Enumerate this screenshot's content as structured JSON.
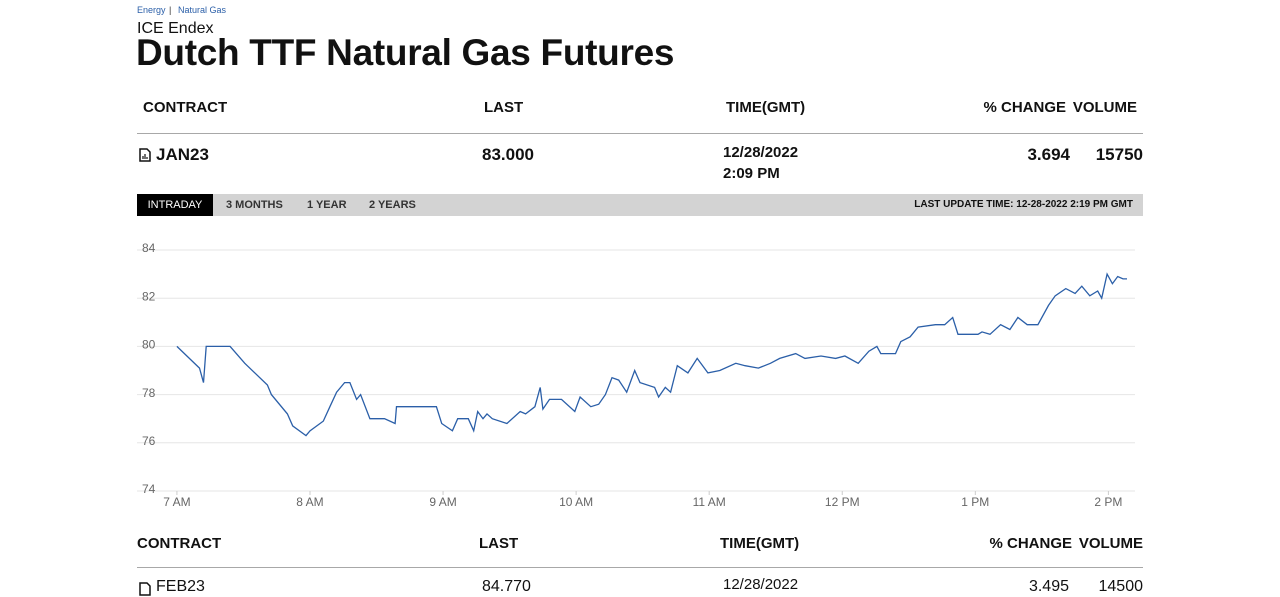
{
  "breadcrumb": {
    "items": [
      "Energy",
      "Natural Gas"
    ],
    "separator": "|"
  },
  "header": {
    "exchange": "ICE Endex",
    "title": "Dutch TTF Natural Gas Futures"
  },
  "table": {
    "columns": [
      "CONTRACT",
      "LAST",
      "TIME(GMT)",
      "% CHANGE",
      "VOLUME"
    ],
    "row": {
      "contract": "JAN23",
      "last": "83.000",
      "date": "12/28/2022",
      "time": "2:09 PM",
      "change": "3.694",
      "volume": "15750"
    }
  },
  "tabs": [
    "INTRADAY",
    "3 MONTHS",
    "1 YEAR",
    "2 YEARS"
  ],
  "last_update": "LAST UPDATE TIME: 12-28-2022 2:19 PM GMT",
  "chart_data": {
    "type": "line",
    "color": "#2b5fa8",
    "grid": true,
    "x": [
      7.0,
      7.17,
      7.2,
      7.22,
      7.4,
      7.51,
      7.68,
      7.71,
      7.83,
      7.87,
      7.97,
      8.0,
      8.1,
      8.15,
      8.2,
      8.26,
      8.3,
      8.35,
      8.38,
      8.45,
      8.56,
      8.64,
      8.65,
      8.95,
      8.99,
      9.07,
      9.11,
      9.19,
      9.23,
      9.26,
      9.3,
      9.33,
      9.37,
      9.48,
      9.58,
      9.62,
      9.69,
      9.73,
      9.75,
      9.8,
      9.89,
      9.99,
      10.03,
      10.11,
      10.17,
      10.22,
      10.27,
      10.32,
      10.38,
      10.44,
      10.48,
      10.59,
      10.62,
      10.67,
      10.71,
      10.76,
      10.84,
      10.91,
      10.99,
      11.08,
      11.2,
      11.27,
      11.37,
      11.46,
      11.53,
      11.65,
      11.72,
      11.84,
      11.95,
      12.02,
      12.12,
      12.2,
      12.26,
      12.29,
      12.4,
      12.44,
      12.51,
      12.57,
      12.7,
      12.77,
      12.83,
      12.87,
      13.02,
      13.05,
      13.11,
      13.19,
      13.26,
      13.32,
      13.39,
      13.47,
      13.55,
      13.6,
      13.68,
      13.75,
      13.8,
      13.86,
      13.92,
      13.95,
      13.99,
      14.03,
      14.07,
      14.11,
      14.14
    ],
    "values": [
      80.0,
      79.1,
      78.5,
      80.0,
      80.0,
      79.3,
      78.4,
      78.0,
      77.2,
      76.7,
      76.3,
      76.5,
      76.9,
      77.5,
      78.1,
      78.5,
      78.5,
      77.8,
      78.0,
      77.0,
      77.0,
      76.8,
      77.5,
      77.5,
      76.8,
      76.5,
      77.0,
      77.0,
      76.5,
      77.3,
      77.0,
      77.2,
      77.0,
      76.8,
      77.3,
      77.2,
      77.5,
      78.3,
      77.4,
      77.8,
      77.8,
      77.3,
      77.9,
      77.5,
      77.6,
      78.0,
      78.7,
      78.6,
      78.1,
      79.0,
      78.5,
      78.3,
      77.9,
      78.3,
      78.1,
      79.2,
      78.9,
      79.5,
      78.9,
      79.0,
      79.3,
      79.2,
      79.1,
      79.3,
      79.5,
      79.7,
      79.5,
      79.6,
      79.5,
      79.6,
      79.3,
      79.8,
      80.0,
      79.7,
      79.7,
      80.2,
      80.4,
      80.8,
      80.9,
      80.9,
      81.2,
      80.5,
      80.5,
      80.6,
      80.5,
      80.9,
      80.7,
      81.2,
      80.9,
      80.9,
      81.7,
      82.1,
      82.4,
      82.2,
      82.5,
      82.1,
      82.3,
      82.0,
      83.0,
      82.6,
      82.9,
      82.8,
      82.8
    ],
    "xlim": [
      6.7,
      14.2
    ],
    "xticks": [
      {
        "value": 7,
        "label": "7 AM"
      },
      {
        "value": 8,
        "label": "8 AM"
      },
      {
        "value": 9,
        "label": "9 AM"
      },
      {
        "value": 10,
        "label": "10 AM"
      },
      {
        "value": 11,
        "label": "11 AM"
      },
      {
        "value": 12,
        "label": "12 PM"
      },
      {
        "value": 13,
        "label": "1 PM"
      },
      {
        "value": 14,
        "label": "2 PM"
      }
    ],
    "ylim": [
      74,
      84
    ],
    "yticks": [
      74,
      76,
      78,
      80,
      82,
      84
    ]
  },
  "table2": {
    "columns": [
      "CONTRACT",
      "LAST",
      "TIME(GMT)",
      "% CHANGE",
      "VOLUME"
    ],
    "row": {
      "contract": "FEB23",
      "last": "84.770",
      "date": "12/28/2022",
      "change": "3.495",
      "volume": "14500"
    }
  }
}
